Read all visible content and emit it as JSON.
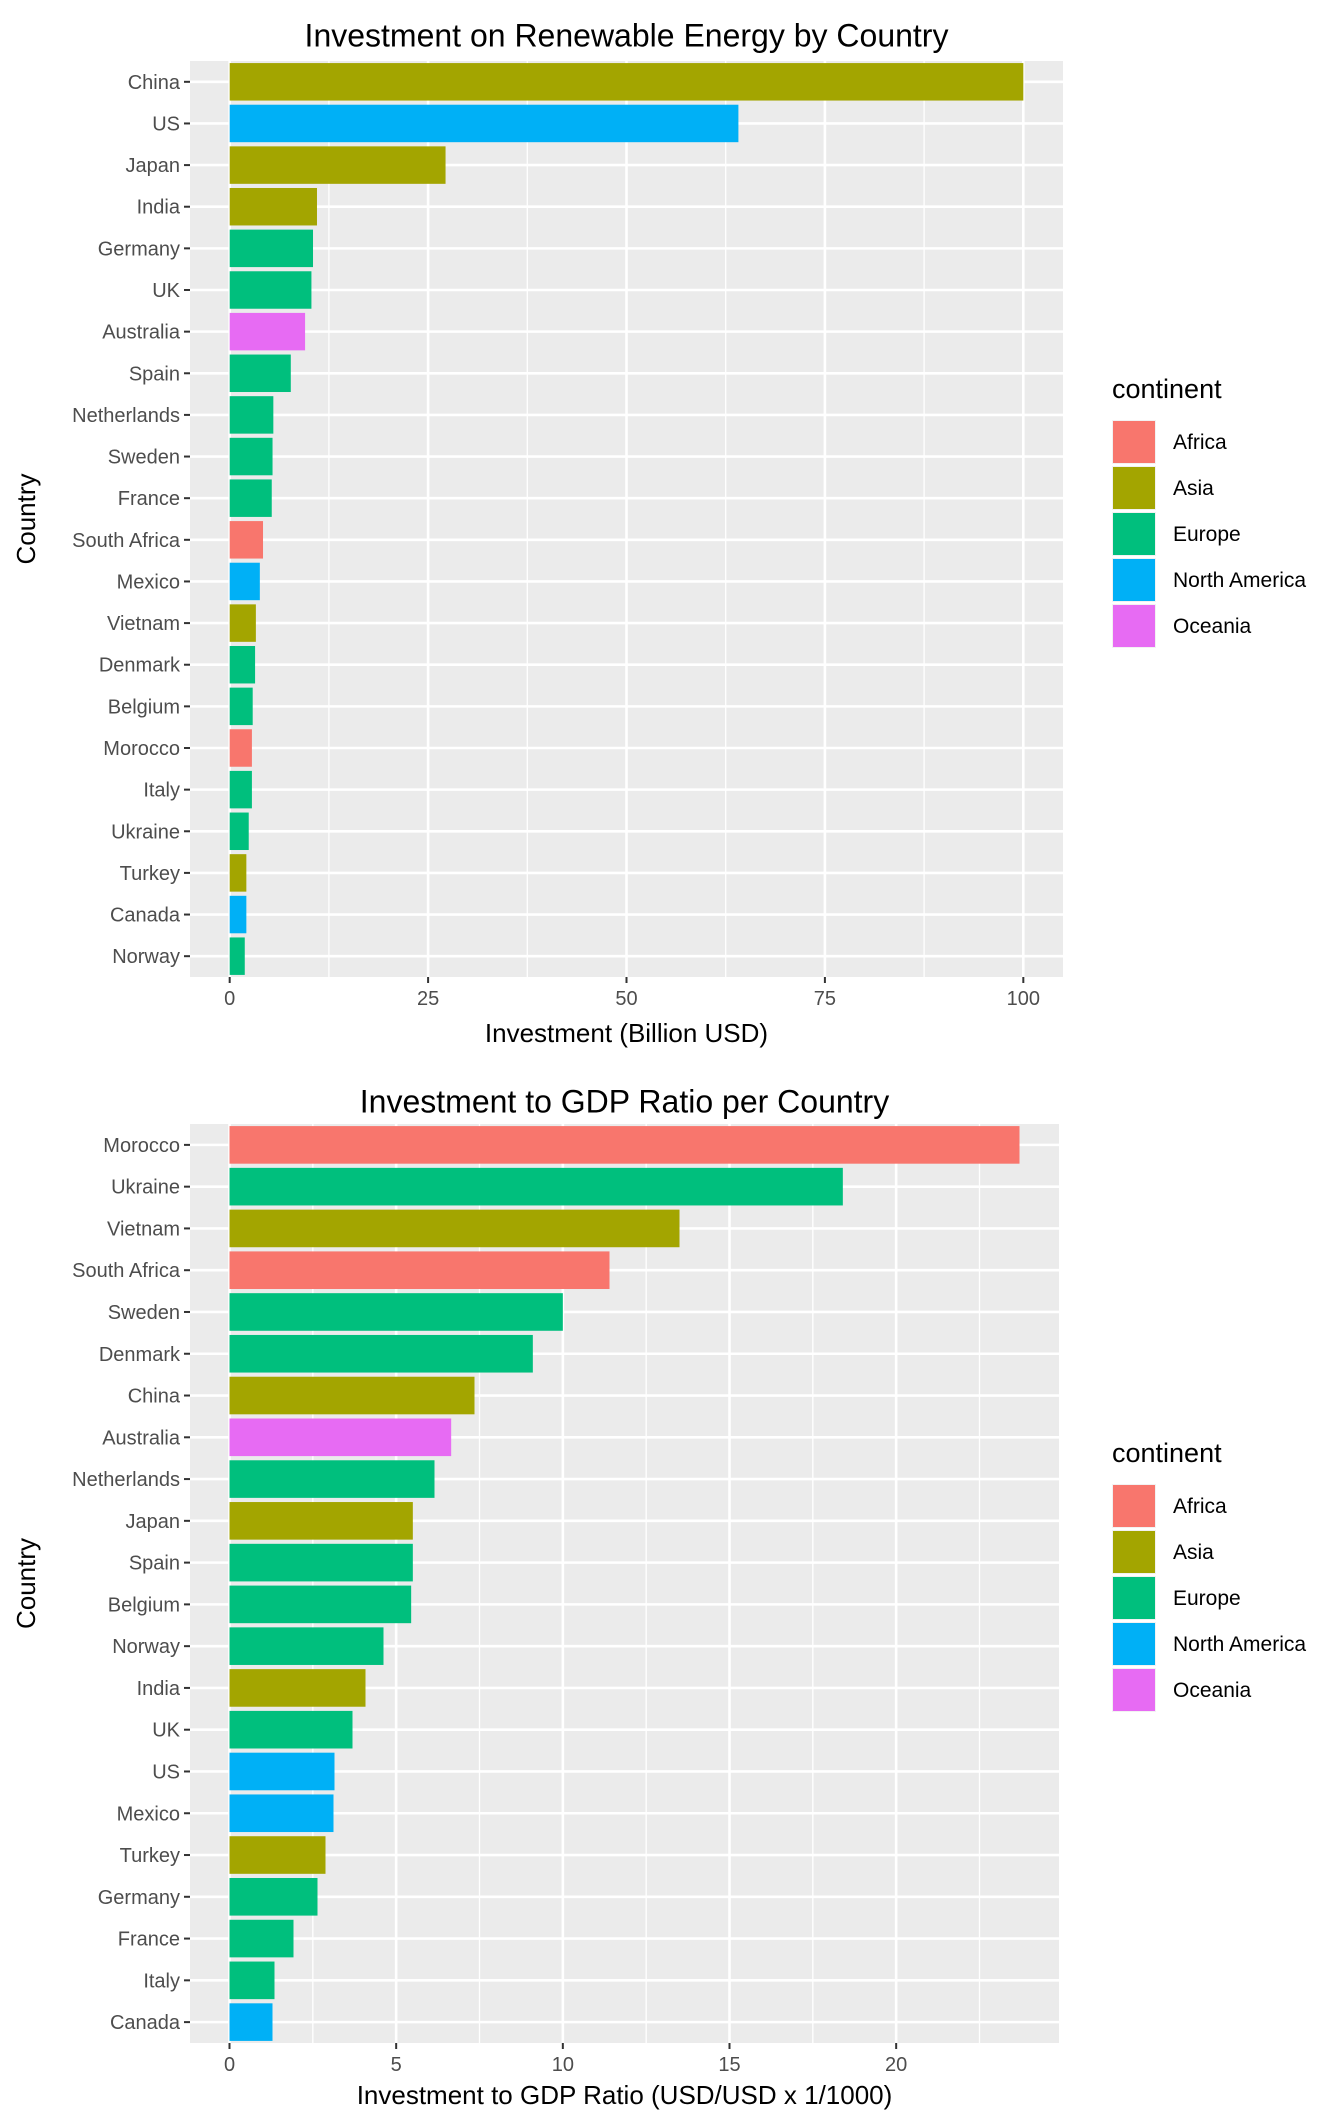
{
  "colors": {
    "Africa": "#F8766D",
    "Asia": "#A3A500",
    "Europe": "#00BF7D",
    "North America": "#00B0F6",
    "Oceania": "#E76BF3"
  },
  "legend": {
    "title": "continent",
    "entries": [
      "Africa",
      "Asia",
      "Europe",
      "North America",
      "Oceania"
    ]
  },
  "chart_data": [
    {
      "type": "bar",
      "orientation": "horizontal",
      "title": "Investment on Renewable Energy by Country",
      "xlabel": "Investment (Billion USD)",
      "ylabel": "Country",
      "xlim": [
        -5,
        105
      ],
      "xticks": [
        0,
        25,
        50,
        75,
        100
      ],
      "grid": true,
      "legend_position": "right",
      "categories": [
        "China",
        "US",
        "Japan",
        "India",
        "Germany",
        "UK",
        "Australia",
        "Spain",
        "Netherlands",
        "Sweden",
        "France",
        "South Africa",
        "Mexico",
        "Vietnam",
        "Denmark",
        "Belgium",
        "Morocco",
        "Italy",
        "Ukraine",
        "Turkey",
        "Canada",
        "Norway"
      ],
      "values": [
        100,
        64.1,
        27.2,
        11,
        10.5,
        10.3,
        9.5,
        7.7,
        5.5,
        5.4,
        5.3,
        4.2,
        3.8,
        3.3,
        3.2,
        2.9,
        2.8,
        2.8,
        2.4,
        2.1,
        2.1,
        1.9
      ],
      "continents": [
        "Asia",
        "North America",
        "Asia",
        "Asia",
        "Europe",
        "Europe",
        "Oceania",
        "Europe",
        "Europe",
        "Europe",
        "Europe",
        "Africa",
        "North America",
        "Asia",
        "Europe",
        "Europe",
        "Africa",
        "Europe",
        "Europe",
        "Asia",
        "North America",
        "Europe"
      ]
    },
    {
      "type": "bar",
      "orientation": "horizontal",
      "title": "Investment to GDP Ratio per Country",
      "xlabel": "Investment to GDP Ratio (USD/USD x 1/1000)",
      "ylabel": "Country",
      "xlim": [
        -1.185,
        24.885
      ],
      "xticks": [
        0,
        5,
        10,
        15,
        20
      ],
      "grid": true,
      "legend_position": "right",
      "categories": [
        "Morocco",
        "Ukraine",
        "Vietnam",
        "South Africa",
        "Sweden",
        "Denmark",
        "China",
        "Australia",
        "Netherlands",
        "Japan",
        "Spain",
        "Belgium",
        "Norway",
        "India",
        "UK",
        "US",
        "Mexico",
        "Turkey",
        "Germany",
        "France",
        "Italy",
        "Canada"
      ],
      "values": [
        23.7,
        18.4,
        13.5,
        11.4,
        10,
        9.1,
        7.35,
        6.65,
        6.15,
        5.5,
        5.5,
        5.45,
        4.62,
        4.08,
        3.69,
        3.15,
        3.12,
        2.88,
        2.64,
        1.92,
        1.35,
        1.29
      ],
      "continents": [
        "Africa",
        "Europe",
        "Asia",
        "Africa",
        "Europe",
        "Europe",
        "Asia",
        "Oceania",
        "Europe",
        "Asia",
        "Europe",
        "Europe",
        "Europe",
        "Asia",
        "Europe",
        "North America",
        "North America",
        "Asia",
        "Europe",
        "Europe",
        "Europe",
        "North America"
      ]
    }
  ]
}
